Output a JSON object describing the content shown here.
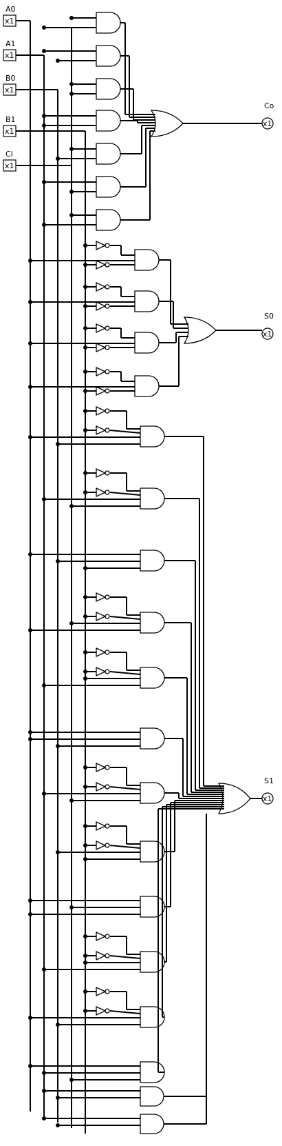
{
  "inputs": [
    {
      "label": "A0",
      "value": "x1"
    },
    {
      "label": "A1",
      "value": "x1"
    },
    {
      "label": "B0",
      "value": "x1"
    },
    {
      "label": "B1",
      "value": "x1"
    },
    {
      "label": "Ci",
      "value": "x1"
    }
  ],
  "outputs": [
    {
      "label": "Co",
      "value": "x1"
    },
    {
      "label": "S0",
      "value": "x1"
    },
    {
      "label": "S1",
      "value": "x1"
    }
  ]
}
